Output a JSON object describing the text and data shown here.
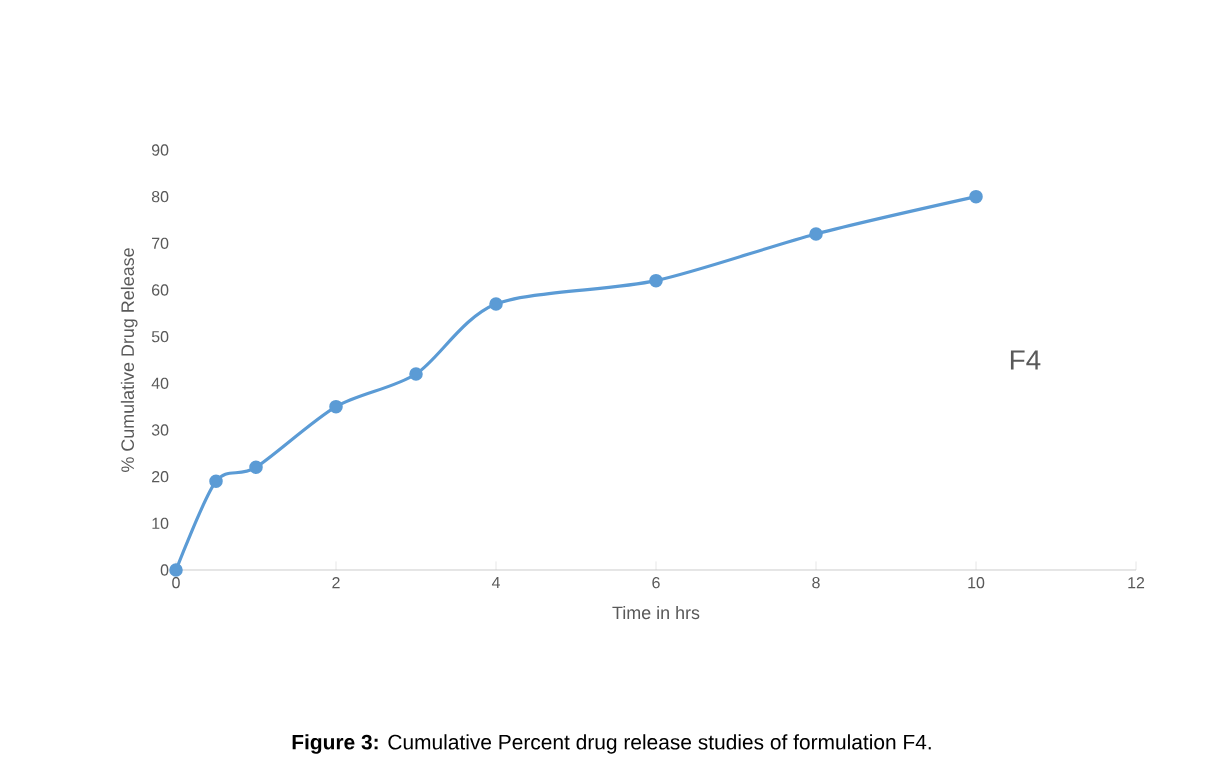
{
  "chart_data": {
    "type": "line",
    "xlabel": "Time in hrs",
    "ylabel": "% Cumulative Drug Release",
    "x": [
      0,
      0.5,
      1,
      2,
      3,
      4,
      6,
      8,
      10
    ],
    "series": [
      {
        "name": "F4",
        "color": "#5b9bd5",
        "values": [
          0,
          19,
          22,
          35,
          42,
          57,
          62,
          72,
          80
        ]
      }
    ],
    "xlim": [
      0,
      12
    ],
    "ylim": [
      0,
      90
    ],
    "xticks": [
      0,
      2,
      4,
      6,
      8,
      10,
      12
    ],
    "yticks": [
      0,
      10,
      20,
      30,
      40,
      50,
      60,
      70,
      80,
      90
    ],
    "marker": "circle",
    "line_style": "solid",
    "grid": false,
    "annotations": [
      "**Figure 3:** Cumulative Percent drug release studies of formulation F4."
    ]
  }
}
